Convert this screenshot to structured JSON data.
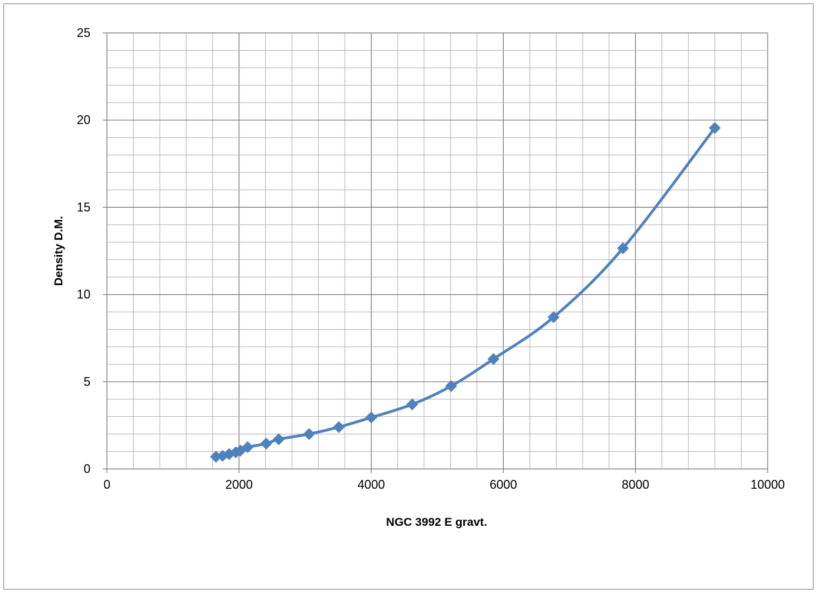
{
  "chart_data": {
    "type": "scatter",
    "title": "",
    "xlabel": "NGC 3992  E gravt.",
    "ylabel": "Density D.M.",
    "xlim": [
      0,
      10000
    ],
    "ylim": [
      0,
      25
    ],
    "x_major_ticks": [
      0,
      2000,
      4000,
      6000,
      8000,
      10000
    ],
    "y_major_ticks": [
      0,
      5,
      10,
      15,
      20,
      25
    ],
    "x_minor_step": 400,
    "y_minor_step": 1,
    "grid": true,
    "legend": "none",
    "line_style": "smooth line with diamond markers",
    "series": [
      {
        "color": "#4f81bd",
        "marker": "diamond",
        "x": [
          1650,
          1750,
          1850,
          1950,
          2020,
          2130,
          2410,
          2600,
          3060,
          3510,
          4000,
          4620,
          5210,
          5850,
          6760,
          7810,
          9200
        ],
        "y": [
          0.7,
          0.75,
          0.85,
          0.95,
          1.05,
          1.25,
          1.45,
          1.7,
          2.0,
          2.4,
          2.95,
          3.7,
          4.75,
          6.3,
          8.7,
          12.65,
          19.55
        ]
      }
    ]
  }
}
